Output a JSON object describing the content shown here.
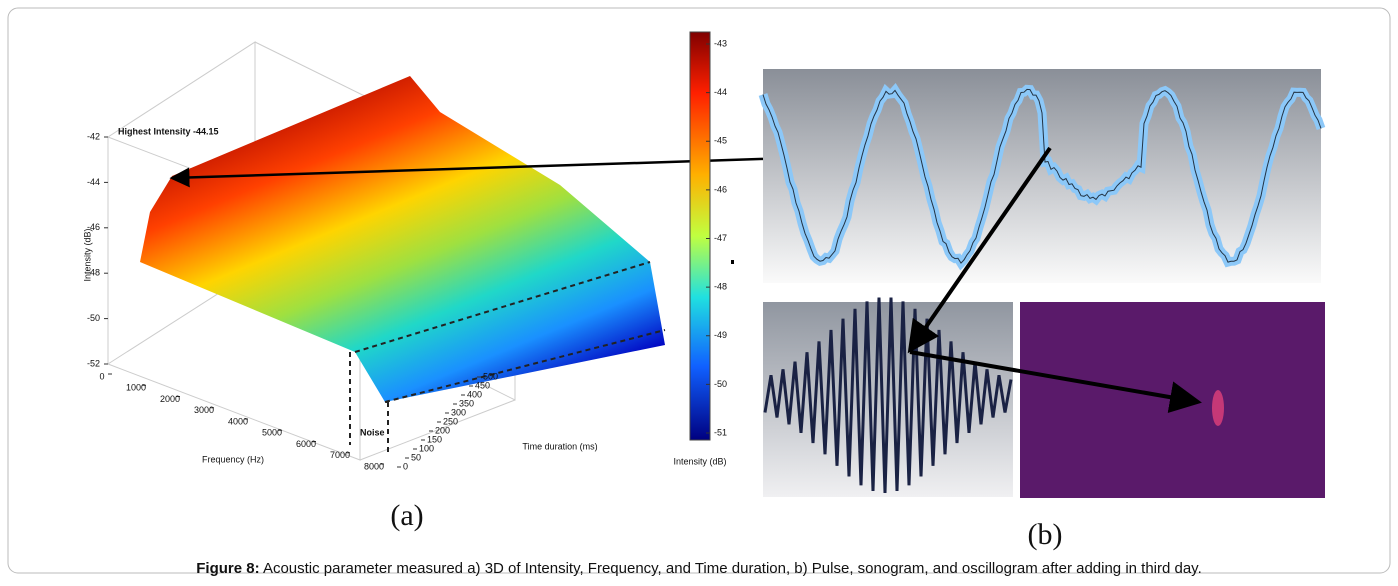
{
  "panel_a": {
    "label": "(a)",
    "z_axis": {
      "label": "Intensity (dB)",
      "ticks": [
        -42,
        -44,
        -46,
        -48,
        -50,
        -52
      ]
    },
    "frequency_axis": {
      "label": "Frequency (Hz)",
      "ticks": [
        0,
        1000,
        2000,
        3000,
        4000,
        5000,
        6000,
        7000,
        8000
      ]
    },
    "time_axis": {
      "label": "Time duration (ms)",
      "ticks": [
        0,
        50,
        100,
        150,
        200,
        250,
        300,
        350,
        400,
        450,
        500
      ]
    },
    "colorbar": {
      "label": "Intensity (dB)",
      "ticks": [
        -43,
        -44,
        -45,
        -46,
        -47,
        -48,
        -49,
        -50,
        -51
      ]
    },
    "annotations": {
      "peak": "Highest Intensity -44.15",
      "noise": "Noise"
    }
  },
  "panel_b": {
    "label": "(b)"
  },
  "caption": {
    "label": "Figure 8:",
    "text": "Acoustic parameter measured a) 3D of Intensity, Frequency, and Time duration, b) Pulse, sonogram, and oscillogram after adding in third day."
  }
}
